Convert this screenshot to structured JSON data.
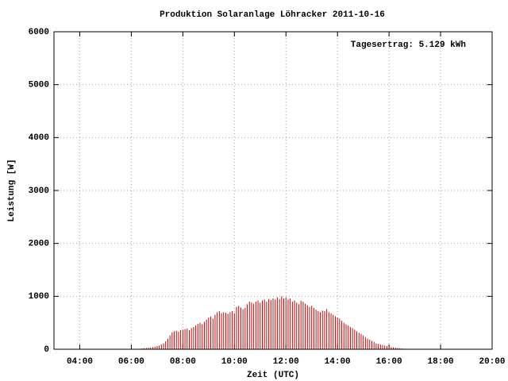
{
  "chart_data": {
    "type": "impulse",
    "title": "Produktion Solaranlage Löhracker 2011-10-16",
    "annotation": "Tagesertrag: 5.129 kWh",
    "x_label": "Zeit (UTC)",
    "y_label": "Leistung [W]",
    "color": "#d00000",
    "grid": true,
    "xlim": [
      180,
      1200
    ],
    "xticks": [
      {
        "value": 240,
        "label": "04:00"
      },
      {
        "value": 360,
        "label": "06:00"
      },
      {
        "value": 480,
        "label": "08:00"
      },
      {
        "value": 600,
        "label": "10:00"
      },
      {
        "value": 720,
        "label": "12:00"
      },
      {
        "value": 840,
        "label": "14:00"
      },
      {
        "value": 960,
        "label": "16:00"
      },
      {
        "value": 1080,
        "label": "18:00"
      },
      {
        "value": 1200,
        "label": "20:00"
      }
    ],
    "ylim": [
      0,
      6000
    ],
    "yticks": [
      0,
      1000,
      2000,
      3000,
      4000,
      5000,
      6000
    ],
    "x": [
      370,
      375,
      380,
      385,
      390,
      395,
      400,
      405,
      410,
      415,
      420,
      425,
      430,
      435,
      440,
      445,
      450,
      455,
      460,
      465,
      470,
      475,
      480,
      485,
      490,
      495,
      500,
      505,
      510,
      515,
      520,
      525,
      530,
      535,
      540,
      545,
      550,
      555,
      560,
      565,
      570,
      575,
      580,
      585,
      590,
      595,
      600,
      605,
      610,
      615,
      620,
      625,
      630,
      635,
      640,
      645,
      650,
      655,
      660,
      665,
      670,
      675,
      680,
      685,
      690,
      695,
      700,
      705,
      710,
      715,
      720,
      725,
      730,
      735,
      740,
      745,
      750,
      755,
      760,
      765,
      770,
      775,
      780,
      785,
      790,
      795,
      800,
      805,
      810,
      815,
      820,
      825,
      830,
      835,
      840,
      845,
      850,
      855,
      860,
      865,
      870,
      875,
      880,
      885,
      890,
      895,
      900,
      905,
      910,
      915,
      920,
      925,
      930,
      935,
      940,
      945,
      950,
      955,
      960,
      965,
      970,
      975,
      980,
      985,
      990,
      995,
      1000,
      1005,
      1010,
      1015,
      1020
    ],
    "values": [
      5,
      8,
      10,
      15,
      20,
      25,
      30,
      35,
      40,
      50,
      60,
      70,
      90,
      110,
      150,
      200,
      260,
      320,
      340,
      350,
      330,
      360,
      370,
      380,
      390,
      360,
      400,
      420,
      450,
      480,
      500,
      470,
      520,
      560,
      600,
      620,
      580,
      650,
      700,
      720,
      680,
      700,
      690,
      670,
      700,
      720,
      680,
      800,
      820,
      790,
      760,
      780,
      850,
      900,
      880,
      860,
      900,
      920,
      880,
      920,
      940,
      900,
      950,
      930,
      960,
      940,
      980,
      950,
      1000,
      960,
      980,
      940,
      960,
      900,
      920,
      880,
      850,
      920,
      900,
      860,
      830,
      800,
      820,
      780,
      750,
      720,
      700,
      730,
      720,
      760,
      700,
      680,
      650,
      620,
      600,
      580,
      540,
      500,
      470,
      450,
      420,
      400,
      370,
      340,
      310,
      290,
      260,
      230,
      200,
      180,
      160,
      140,
      110,
      100,
      90,
      80,
      70,
      60,
      50,
      40,
      35,
      30,
      25,
      20,
      15,
      10,
      8,
      6,
      5,
      3,
      2
    ]
  }
}
